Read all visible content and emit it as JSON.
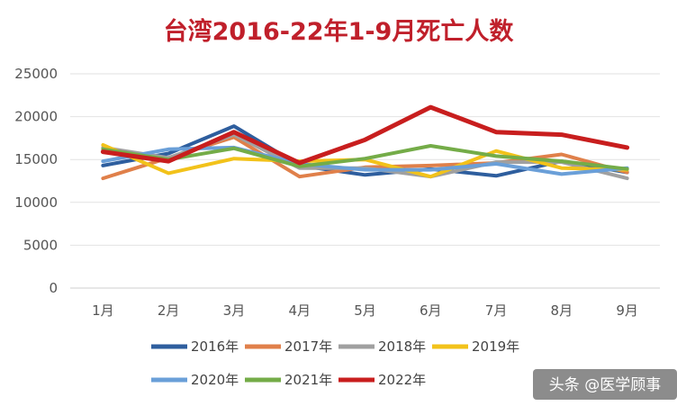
{
  "chart_data": {
    "type": "line",
    "title": "台湾2016-22年1-9月死亡人数",
    "categories": [
      "1月",
      "2月",
      "3月",
      "4月",
      "5月",
      "6月",
      "7月",
      "8月",
      "9月"
    ],
    "ylim": [
      0,
      25000
    ],
    "yticks": [
      0,
      5000,
      10000,
      15000,
      20000,
      25000
    ],
    "grid": true,
    "legend_position": "bottom",
    "series": [
      {
        "name": "2016年",
        "color": "#2e5e9e",
        "values": [
          14300,
          15700,
          18900,
          14300,
          13200,
          13900,
          13100,
          14800,
          13500
        ]
      },
      {
        "name": "2017年",
        "color": "#e0804a",
        "values": [
          12800,
          15200,
          17600,
          13000,
          14100,
          14300,
          14600,
          15600,
          13500
        ]
      },
      {
        "name": "2018年",
        "color": "#a0a0a0",
        "values": [
          16400,
          15200,
          17900,
          14000,
          14000,
          13000,
          14700,
          14700,
          12800
        ]
      },
      {
        "name": "2019年",
        "color": "#f2c21a",
        "values": [
          16700,
          13400,
          15100,
          14800,
          15000,
          13000,
          16000,
          14000,
          13800
        ]
      },
      {
        "name": "2020年",
        "color": "#6a9fd8",
        "values": [
          14800,
          16200,
          16400,
          14500,
          13800,
          13800,
          14500,
          13300,
          14000
        ]
      },
      {
        "name": "2021年",
        "color": "#74ac48",
        "values": [
          16200,
          15000,
          16300,
          14200,
          15100,
          16600,
          15400,
          14800,
          13900
        ]
      },
      {
        "name": "2022年",
        "color": "#c81e1e",
        "values": [
          15900,
          14800,
          18200,
          14600,
          17300,
          21100,
          18200,
          17900,
          16400
        ]
      }
    ]
  },
  "title_color": "#c0202b",
  "watermark": "头条 @医学顾事"
}
